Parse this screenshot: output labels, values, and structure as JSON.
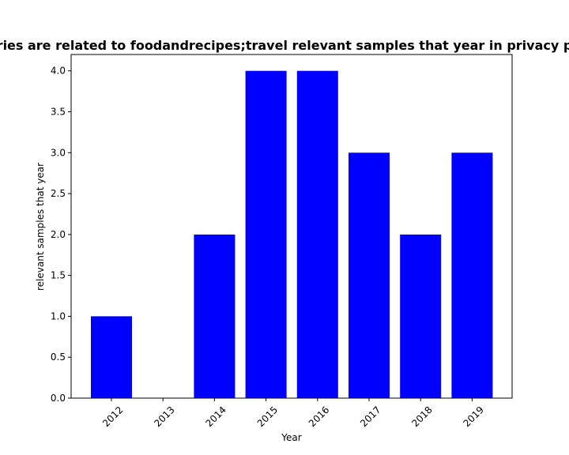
{
  "chart_data": {
    "type": "bar",
    "title": "ries are related to foodandrecipes;travel relevant samples that year in privacy p",
    "xlabel": "Year",
    "ylabel": "relevant samples that year",
    "categories": [
      "2012",
      "2013",
      "2014",
      "2015",
      "2016",
      "2017",
      "2018",
      "2019"
    ],
    "values": [
      1,
      0,
      2,
      4,
      4,
      3,
      2,
      3
    ],
    "ylim": [
      0,
      4.2
    ],
    "yticks": [
      "0.0",
      "0.5",
      "1.0",
      "1.5",
      "2.0",
      "2.5",
      "3.0",
      "3.5",
      "4.0"
    ],
    "bar_color": "#0000ff",
    "grid": false,
    "legend": false
  }
}
